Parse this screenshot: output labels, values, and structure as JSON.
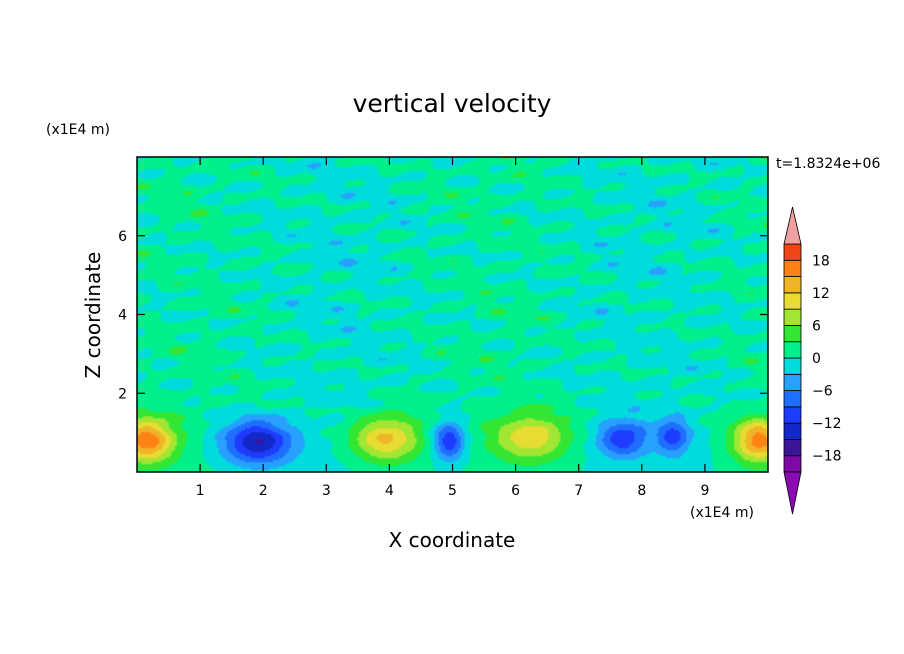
{
  "chart_data": {
    "type": "heatmap",
    "title": "vertical velocity",
    "time_label": "t=1.8324e+06",
    "xlabel": "X coordinate",
    "ylabel": "Z coordinate",
    "x_unit": "(x1E4 m)",
    "y_unit": "(x1E4 m)",
    "xlim": [
      0,
      10
    ],
    "ylim": [
      0,
      8
    ],
    "x_ticks": [
      "1",
      "2",
      "3",
      "4",
      "5",
      "6",
      "7",
      "8",
      "9"
    ],
    "y_ticks": [
      "2",
      "4",
      "6"
    ],
    "colorbar": {
      "tick_labels": [
        "18",
        "12",
        "6",
        "0",
        "−6",
        "−12",
        "−18"
      ],
      "levels": [
        -21,
        -18,
        -15,
        -12,
        -9,
        -6,
        -3,
        0,
        3,
        6,
        9,
        12,
        15,
        18,
        21
      ],
      "colors": [
        "#7d0aa5",
        "#3c1496",
        "#1428c8",
        "#1e3cff",
        "#1e6eff",
        "#28a0ff",
        "#00dcdc",
        "#00f08c",
        "#33e633",
        "#a0e632",
        "#e6dc32",
        "#f0b428",
        "#ff8214",
        "#f04614",
        "#dc1414"
      ],
      "under_color": "#8c0ab4",
      "over_color": "#f0a0a0"
    },
    "cells": [
      {
        "x": 0.15,
        "z": 0.8,
        "w": 17,
        "sx": 0.45,
        "sz": 0.55
      },
      {
        "x": 1.9,
        "z": 0.75,
        "w": -15,
        "sx": 0.55,
        "sz": 0.55
      },
      {
        "x": 3.95,
        "z": 0.85,
        "w": 13,
        "sx": 0.55,
        "sz": 0.6
      },
      {
        "x": 4.95,
        "z": 0.8,
        "w": -12,
        "sx": 0.25,
        "sz": 0.5
      },
      {
        "x": 6.25,
        "z": 0.9,
        "w": 11,
        "sx": 0.6,
        "sz": 0.6
      },
      {
        "x": 7.7,
        "z": 0.85,
        "w": -11,
        "sx": 0.4,
        "sz": 0.45
      },
      {
        "x": 8.5,
        "z": 0.9,
        "w": -10,
        "sx": 0.25,
        "sz": 0.45
      },
      {
        "x": 9.85,
        "z": 0.8,
        "w": 16,
        "sx": 0.4,
        "sz": 0.55
      }
    ]
  }
}
